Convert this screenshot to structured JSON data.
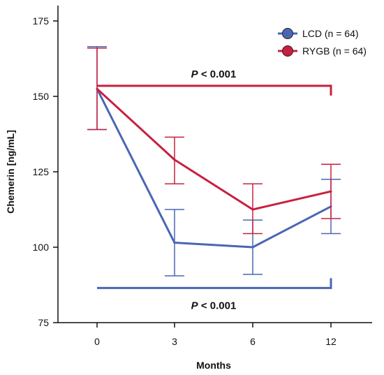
{
  "chart_data": {
    "type": "line",
    "xlabel": "Months",
    "ylabel": "Chemerin [ng/mL]",
    "categories": [
      "0",
      "3",
      "6",
      "12"
    ],
    "ylim": [
      75,
      175
    ],
    "yticks": [
      75,
      100,
      125,
      150,
      175
    ],
    "grid": false,
    "legend_position": "top-right",
    "series": [
      {
        "name": "LCD (n = 64)",
        "color": "#4a66b3",
        "values": [
          152.5,
          101.5,
          100.0,
          113.5
        ],
        "err_low": [
          139.0,
          90.5,
          91.0,
          104.5
        ],
        "err_high": [
          166.5,
          112.5,
          109.0,
          122.5
        ]
      },
      {
        "name": "RYGB (n = 64)",
        "color": "#c8203e",
        "values": [
          152.5,
          129.0,
          112.5,
          118.5
        ],
        "err_low": [
          139.0,
          121.0,
          104.5,
          109.5
        ],
        "err_high": [
          166.0,
          136.5,
          121.0,
          127.5
        ]
      }
    ],
    "annotations": [
      {
        "series": "RYGB (n = 64)",
        "text_prefix": "P",
        "text_suffix": " < 0.001",
        "bracket_y": 153.5,
        "color": "#c8203e",
        "position": "above"
      },
      {
        "series": "LCD (n = 64)",
        "text_prefix": "P",
        "text_suffix": " < 0.001",
        "bracket_y": 86.5,
        "color": "#4a66b3",
        "position": "below"
      }
    ]
  }
}
